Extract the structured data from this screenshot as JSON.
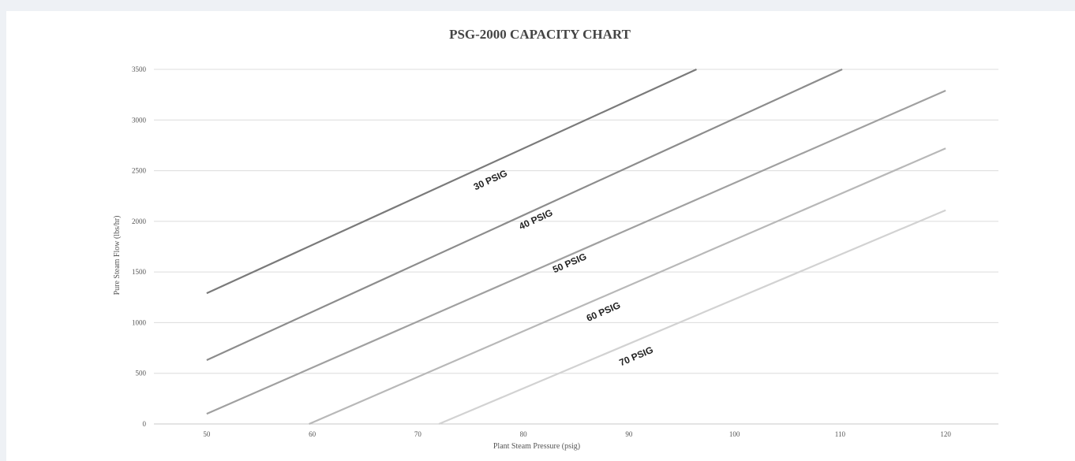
{
  "chart_data": {
    "type": "line",
    "title": "PSG-2000 CAPACITY CHART",
    "xlabel": "Plant Steam Pressure (psig)",
    "ylabel": "Pure Steam Flow (lbs/hr)",
    "xlim": [
      45,
      125
    ],
    "ylim": [
      0,
      3500
    ],
    "xticks": [
      50,
      60,
      70,
      80,
      90,
      100,
      110,
      120
    ],
    "yticks": [
      0,
      500,
      1000,
      1500,
      2000,
      2500,
      3000,
      3500
    ],
    "grid": true,
    "legend": "none",
    "series": [
      {
        "name": "30 PSIG",
        "color": "#7a7a7a",
        "x": [
          50,
          96.4
        ],
        "y": [
          1290,
          3500
        ],
        "label_at": [
          77,
          2380
        ]
      },
      {
        "name": "40 PSIG",
        "color": "#8c8c8c",
        "x": [
          50,
          110.2
        ],
        "y": [
          630,
          3500
        ],
        "label_at": [
          81.3,
          1990
        ]
      },
      {
        "name": "50 PSIG",
        "color": "#a0a0a0",
        "x": [
          50,
          120
        ],
        "y": [
          100,
          3290
        ],
        "label_at": [
          84.5,
          1560
        ]
      },
      {
        "name": "60 PSIG",
        "color": "#b8b8b8",
        "x": [
          59.7,
          120
        ],
        "y": [
          0,
          2720
        ],
        "label_at": [
          87.7,
          1080
        ]
      },
      {
        "name": "70 PSIG",
        "color": "#d2d2d2",
        "x": [
          72,
          120
        ],
        "y": [
          0,
          2110
        ],
        "label_at": [
          90.8,
          640
        ]
      }
    ]
  }
}
